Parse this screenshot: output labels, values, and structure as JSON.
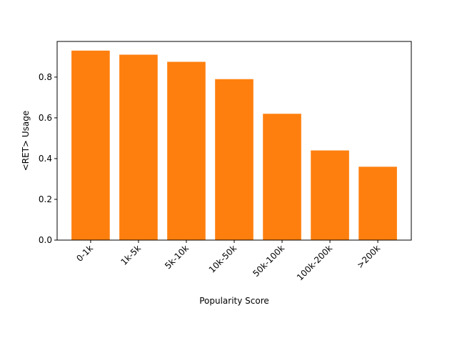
{
  "chart_data": {
    "type": "bar",
    "title": "",
    "xlabel": "Popularity Score",
    "ylabel": "<RET> Usage",
    "categories": [
      "0-1k",
      "1k-5k",
      "5k-10k",
      "10k-50k",
      "50k-100k",
      "100k-200k",
      ">200k"
    ],
    "values": [
      0.93,
      0.91,
      0.875,
      0.79,
      0.62,
      0.44,
      0.36
    ],
    "ylim": [
      0,
      0.975
    ],
    "yticks": [
      "0.0",
      "0.2",
      "0.4",
      "0.6",
      "0.8"
    ],
    "ytick_values": [
      0.0,
      0.2,
      0.4,
      0.6,
      0.8
    ],
    "bar_color": "#ff7f0e",
    "grid": false,
    "legend": "none"
  }
}
